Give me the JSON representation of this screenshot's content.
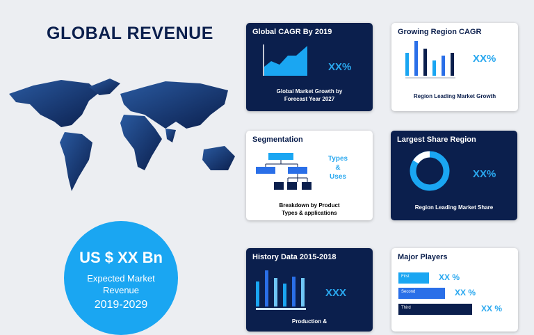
{
  "title": "GLOBAL REVENUE",
  "revenue": {
    "value": "US $ XX Bn",
    "label": "Expected Market Revenue",
    "period": "2019-2029"
  },
  "cards": {
    "cagr": {
      "title": "Global CAGR By 2019",
      "value": "XX%",
      "caption_line1": "Global Market Growth by",
      "caption_line2": "Forecast Year 2027"
    },
    "region_cagr": {
      "title": "Growing Region CAGR",
      "value": "XX%",
      "caption": "Region Leading Market Growth"
    },
    "segmentation": {
      "title": "Segmentation",
      "types_line1": "Types",
      "types_line2": "&",
      "types_line3": "Uses",
      "caption_line1": "Breakdown by Product",
      "caption_line2": "Types & applications"
    },
    "largest_share": {
      "title": "Largest Share Region",
      "value": "XX%",
      "caption": "Region Leading Market Share"
    },
    "history": {
      "title": "History Data 2015-2018",
      "value": "XXX",
      "caption": "Production &"
    },
    "players": {
      "title": "Major Players",
      "items": [
        {
          "label": "First",
          "value": "XX %"
        },
        {
          "label": "Second",
          "value": "XX %"
        },
        {
          "label": "Third",
          "value": "XX %"
        }
      ]
    }
  },
  "colors": {
    "navy": "#0b1f4d",
    "accent": "#2aa8ef",
    "blue": "#2a6fe8",
    "light": "#6fc6f5"
  }
}
